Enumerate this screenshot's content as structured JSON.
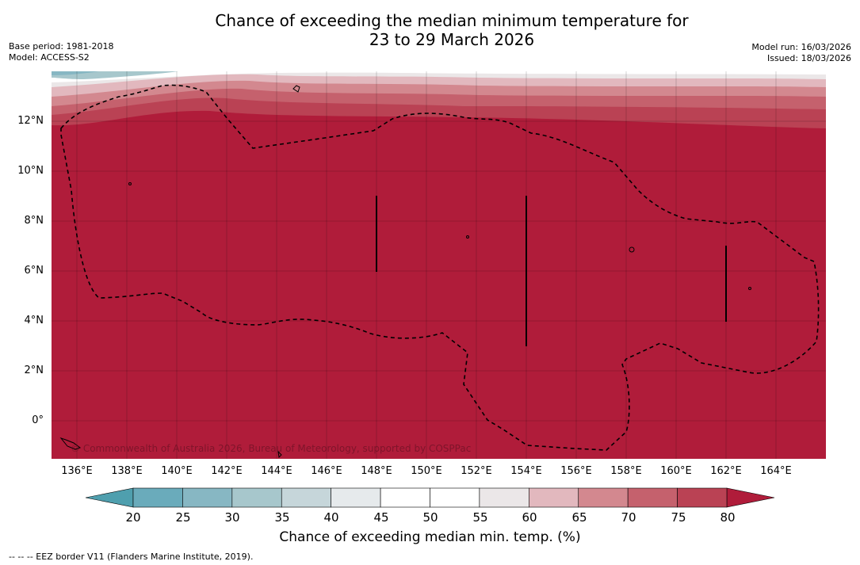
{
  "title": {
    "line1": "Chance of exceeding the median minimum temperature for",
    "line2": "23 to 29 March 2026"
  },
  "meta_left": {
    "base_period": "Base period: 1981-2018",
    "model": "Model: ACCESS-S2"
  },
  "meta_right": {
    "model_run": "Model run: 16/03/2026",
    "issued": "Issued: 18/03/2026"
  },
  "map": {
    "lat_labels": [
      "12°N",
      "10°N",
      "8°N",
      "6°N",
      "4°N",
      "2°N",
      "0°"
    ],
    "lon_labels": [
      "136°E",
      "138°E",
      "140°E",
      "142°E",
      "144°E",
      "146°E",
      "148°E",
      "150°E",
      "152°E",
      "154°E",
      "156°E",
      "158°E",
      "160°E",
      "162°E",
      "164°E"
    ],
    "copyright": "© Commonwealth of Australia 2026, Bureau of Meteorology, supported by COSPPac",
    "dominant_color": "#b01c3a"
  },
  "colorbar": {
    "ticks": [
      "20",
      "25",
      "30",
      "35",
      "40",
      "45",
      "50",
      "55",
      "60",
      "65",
      "70",
      "75",
      "80"
    ],
    "colors": [
      "#6aabbb",
      "#87b7c3",
      "#a7c7cc",
      "#c6d6da",
      "#e6eaec",
      "#ffffff",
      "#ffffff",
      "#ebe7e8",
      "#e2b8be",
      "#d3888f",
      "#c5616d",
      "#ba4254"
    ],
    "under_color": "#4f9fae",
    "over_color": "#b01c3a",
    "label": "Chance of exceeding median min. temp. (%)"
  },
  "footer": {
    "eez_legend": "-- -- -- EEZ border V11 (Flanders Marine Institute, 2019)."
  }
}
